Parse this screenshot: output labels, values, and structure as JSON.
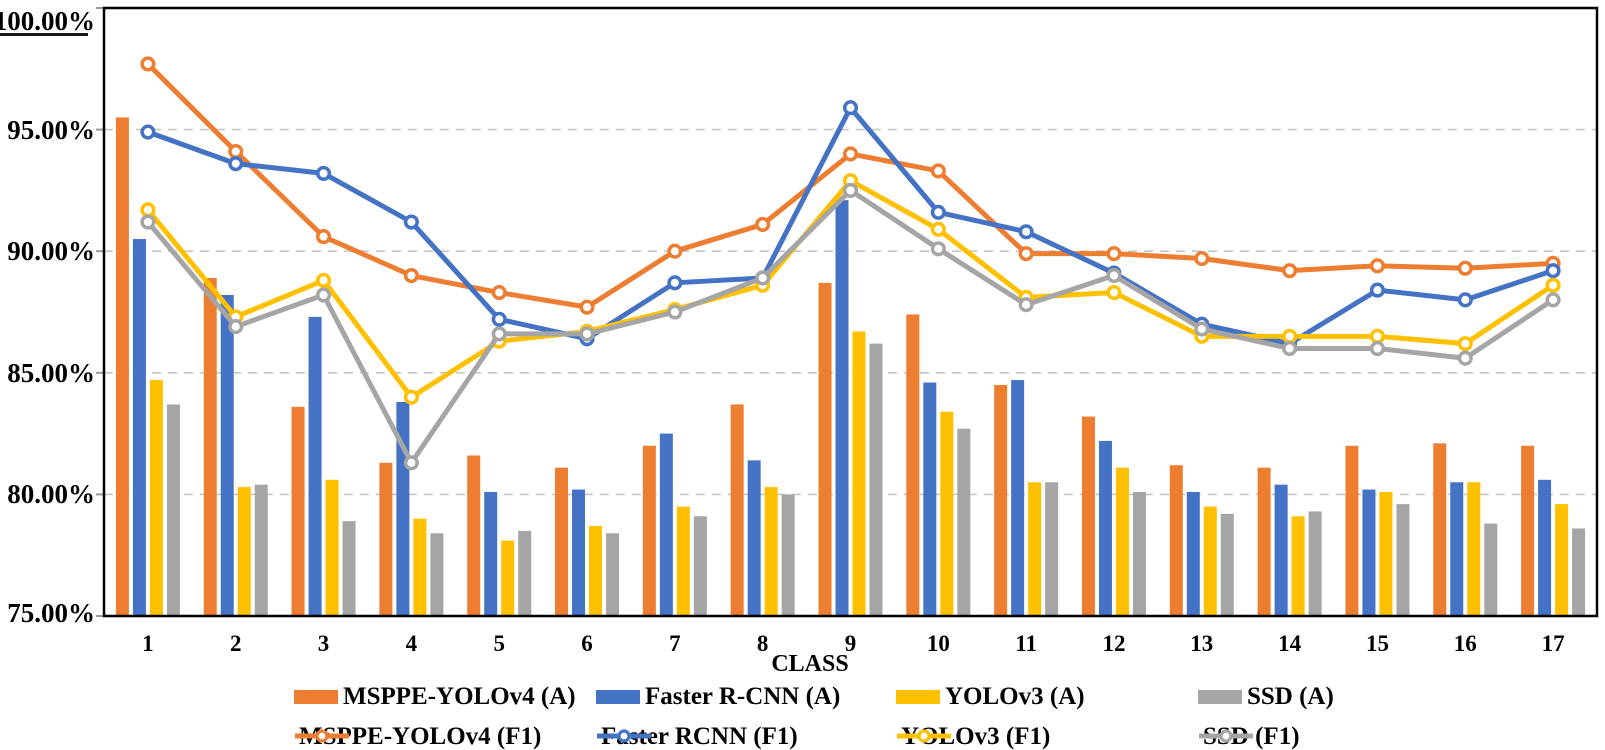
{
  "chart_data": {
    "type": "bar+line",
    "title": "",
    "xlabel": "CLASS",
    "ylabel": "",
    "ylim": [
      75,
      100
    ],
    "grid": "dashed-horizontal",
    "legend_position": "bottom-two-rows",
    "yticks": [
      "100.00%",
      "95.00%",
      "90.00%",
      "85.00%",
      "80.00%",
      "75.00%"
    ],
    "ytick_values": [
      100,
      95,
      90,
      85,
      80,
      75
    ],
    "gridline_values": [
      95,
      90,
      85,
      80
    ],
    "categories": [
      "1",
      "2",
      "3",
      "4",
      "5",
      "6",
      "7",
      "8",
      "9",
      "10",
      "11",
      "12",
      "13",
      "14",
      "15",
      "16",
      "17"
    ],
    "colors": {
      "orange": "#ED7D31",
      "blue": "#4472C4",
      "yellow": "#FFC000",
      "gray": "#A5A5A5",
      "gridline": "#C6C6C6",
      "axis": "#000000",
      "marker_fill": "#FFFFFF"
    },
    "bar_series": [
      {
        "name": "MSPPE-YOLOv4 (A)",
        "color": "#ED7D31",
        "values": [
          95.5,
          88.9,
          83.6,
          81.3,
          81.6,
          81.1,
          82.0,
          83.7,
          88.7,
          87.4,
          84.5,
          83.2,
          81.2,
          81.1,
          82.0,
          82.1,
          82.0
        ]
      },
      {
        "name": "Faster R-CNN (A)",
        "color": "#4472C4",
        "values": [
          90.5,
          88.2,
          87.3,
          83.8,
          80.1,
          80.2,
          82.5,
          81.4,
          92.1,
          84.6,
          84.7,
          82.2,
          80.1,
          80.4,
          80.2,
          80.5,
          80.6
        ]
      },
      {
        "name": "YOLOv3 (A)",
        "color": "#FFC000",
        "values": [
          84.7,
          80.3,
          80.6,
          79.0,
          78.1,
          78.7,
          79.5,
          80.3,
          86.7,
          83.4,
          80.5,
          81.1,
          79.5,
          79.1,
          80.1,
          80.5,
          79.6
        ]
      },
      {
        "name": "SSD (A)",
        "color": "#A5A5A5",
        "values": [
          83.7,
          80.4,
          78.9,
          78.4,
          78.5,
          78.4,
          79.1,
          80.0,
          86.2,
          82.7,
          80.5,
          80.1,
          79.2,
          79.3,
          79.6,
          78.8,
          78.6
        ]
      }
    ],
    "line_series": [
      {
        "name": "MSPPE-YOLOv4 (F1)",
        "color": "#ED7D31",
        "values": [
          97.7,
          94.1,
          90.6,
          89.0,
          88.3,
          87.7,
          90.0,
          91.1,
          94.0,
          93.3,
          89.9,
          89.9,
          89.7,
          89.2,
          89.4,
          89.3,
          89.5
        ]
      },
      {
        "name": "Faster RCNN (F1)",
        "color": "#4472C4",
        "values": [
          94.9,
          93.6,
          93.2,
          91.2,
          87.2,
          86.4,
          88.7,
          88.9,
          95.9,
          91.6,
          90.8,
          89.1,
          87.0,
          86.2,
          88.4,
          88.0,
          89.2
        ]
      },
      {
        "name": "YOLOv3 (F1)",
        "color": "#FFC000",
        "values": [
          91.7,
          87.3,
          88.8,
          84.0,
          86.3,
          86.7,
          87.6,
          88.6,
          92.9,
          90.9,
          88.1,
          88.3,
          86.5,
          86.5,
          86.5,
          86.2,
          88.6
        ]
      },
      {
        "name": "SSD (F1)",
        "color": "#A5A5A5",
        "values": [
          91.2,
          86.9,
          88.2,
          81.3,
          86.6,
          86.6,
          87.5,
          88.9,
          92.5,
          90.1,
          87.8,
          89.0,
          86.8,
          86.0,
          86.0,
          85.6,
          88.0
        ]
      }
    ],
    "legend": {
      "rows": [
        [
          {
            "swatch": "bar",
            "color": "#ED7D31",
            "label": "MSPPE-YOLOv4 (A)"
          },
          {
            "swatch": "bar",
            "color": "#4472C4",
            "label": "Faster R-CNN (A)"
          },
          {
            "swatch": "bar",
            "color": "#FFC000",
            "label": "YOLOv3 (A)"
          },
          {
            "swatch": "bar",
            "color": "#A5A5A5",
            "label": "SSD (A)"
          }
        ],
        [
          {
            "swatch": "line",
            "color": "#ED7D31",
            "label": "MSPPE-YOLOv4 (F1)"
          },
          {
            "swatch": "line",
            "color": "#4472C4",
            "label": "Faster RCNN (F1)"
          },
          {
            "swatch": "line",
            "color": "#FFC000",
            "label": "YOLOv3 (F1)"
          },
          {
            "swatch": "line",
            "color": "#A5A5A5",
            "label": "SSD (F1)"
          }
        ]
      ]
    }
  }
}
